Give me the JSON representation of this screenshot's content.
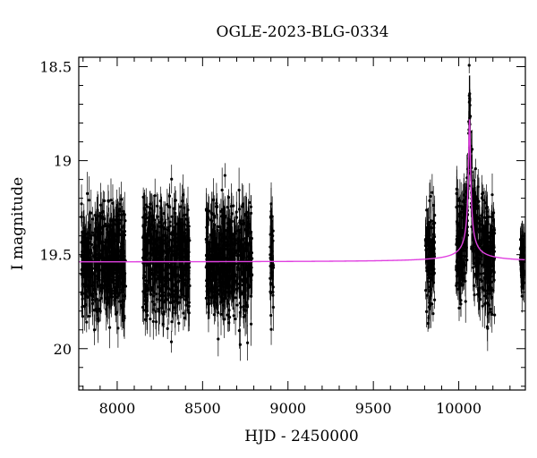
{
  "chart_data": {
    "type": "scatter",
    "title": "OGLE-2023-BLG-0334",
    "xlabel": "HJD - 2450000",
    "ylabel": "I magnitude",
    "xlim": [
      7775,
      10390
    ],
    "ylim": [
      20.22,
      18.45
    ],
    "y_inverted": true,
    "x_ticks": [
      8000,
      8500,
      9000,
      9500,
      10000
    ],
    "y_ticks": [
      18.5,
      19,
      19.5,
      20
    ],
    "y_tick_labels": [
      "18.5",
      "19",
      "19.5",
      "20"
    ],
    "grid": false,
    "legend": "none",
    "baseline_mag": 19.54,
    "peak": {
      "hjd": 10063,
      "mag": 18.78
    },
    "seasons": [
      {
        "start": 7790,
        "end": 8050,
        "mean_mag": 19.54,
        "scatter": 0.2
      },
      {
        "start": 8150,
        "end": 8425,
        "mean_mag": 19.54,
        "scatter": 0.2
      },
      {
        "start": 8520,
        "end": 8790,
        "mean_mag": 19.54,
        "scatter": 0.2
      },
      {
        "start": 8895,
        "end": 8915,
        "mean_mag": 19.54,
        "scatter": 0.2
      },
      {
        "start": 9805,
        "end": 9860,
        "mean_mag": 19.54,
        "scatter": 0.2
      },
      {
        "start": 9985,
        "end": 10210,
        "mean_mag": 19.54,
        "scatter": 0.2
      },
      {
        "start": 10360,
        "end": 10385,
        "mean_mag": 19.6,
        "scatter": 0.1
      }
    ],
    "series": [
      {
        "values": "photometry with error bars"
      },
      {
        "values": "microlensing model curve"
      }
    ],
    "colors": {
      "data": "#000000",
      "model": "#e040e0"
    }
  }
}
